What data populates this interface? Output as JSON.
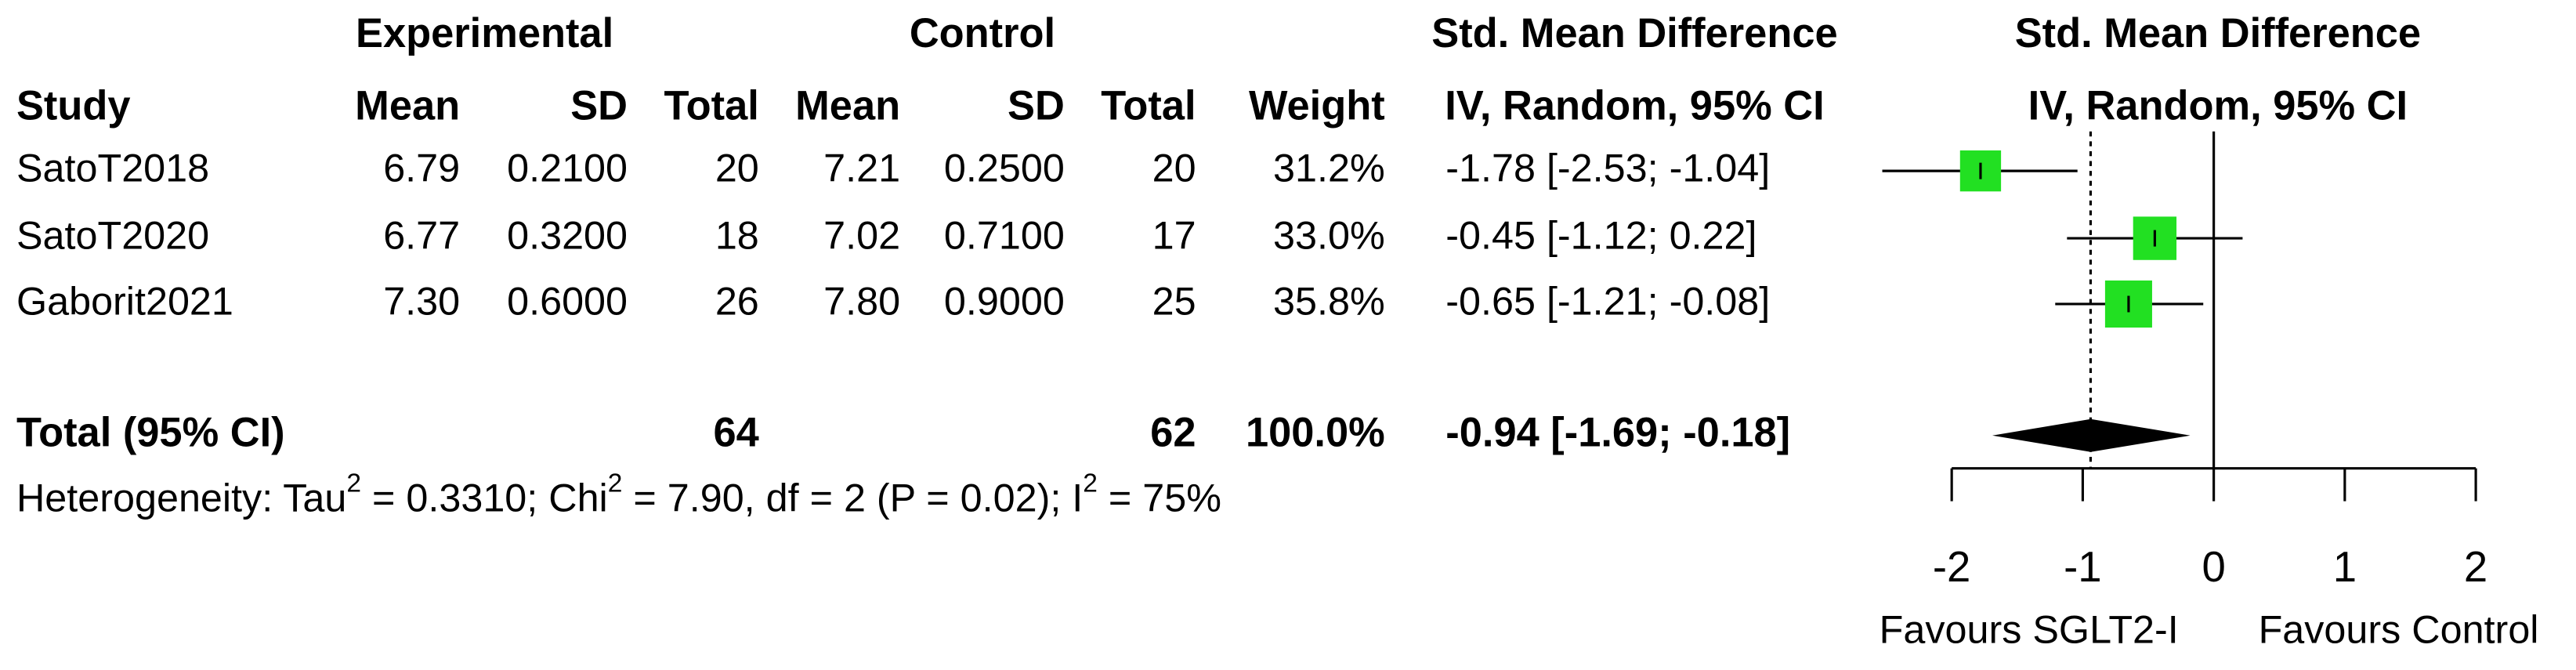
{
  "chart_data": {
    "type": "forest",
    "headers": {
      "experimental": "Experimental",
      "control": "Control",
      "smd": "Std. Mean Difference",
      "smd_method": "IV, Random, 95% CI",
      "plot_title": "Std. Mean Difference",
      "plot_method": "IV, Random, 95% CI"
    },
    "columns": [
      "Study",
      "Mean",
      "SD",
      "Total",
      "Mean",
      "SD",
      "Total",
      "Weight"
    ],
    "studies": [
      {
        "name": "SatoT2018",
        "exp_mean": "6.79",
        "exp_sd": "0.2100",
        "exp_total": "20",
        "ctrl_mean": "7.21",
        "ctrl_sd": "0.2500",
        "ctrl_total": "20",
        "weight": 31.2,
        "weight_label": "31.2%",
        "smd": -1.78,
        "ci_low": -2.53,
        "ci_high": -1.04,
        "ci_label": "-1.78 [-2.53; -1.04]"
      },
      {
        "name": "SatoT2020",
        "exp_mean": "6.77",
        "exp_sd": "0.3200",
        "exp_total": "18",
        "ctrl_mean": "7.02",
        "ctrl_sd": "0.7100",
        "ctrl_total": "17",
        "weight": 33.0,
        "weight_label": "33.0%",
        "smd": -0.45,
        "ci_low": -1.12,
        "ci_high": 0.22,
        "ci_label": "-0.45 [-1.12;  0.22]"
      },
      {
        "name": "Gaborit2021",
        "exp_mean": "7.30",
        "exp_sd": "0.6000",
        "exp_total": "26",
        "ctrl_mean": "7.80",
        "ctrl_sd": "0.9000",
        "ctrl_total": "25",
        "weight": 35.8,
        "weight_label": "35.8%",
        "smd": -0.65,
        "ci_low": -1.21,
        "ci_high": -0.08,
        "ci_label": "-0.65 [-1.21; -0.08]"
      }
    ],
    "total": {
      "name": "Total (95% CI)",
      "exp_total": "64",
      "ctrl_total": "62",
      "weight_label": "100.0%",
      "smd": -0.94,
      "ci_low": -1.69,
      "ci_high": -0.18,
      "ci_label": "-0.94 [-1.69; -0.18]"
    },
    "heterogeneity": [
      {
        "text": "Heterogeneity: Tau"
      },
      {
        "sup": "2"
      },
      {
        "text": " = 0.3310; Chi"
      },
      {
        "sup": "2"
      },
      {
        "text": " = 7.90, df = 2 (P = 0.02); I"
      },
      {
        "sup": "2"
      },
      {
        "text": " = 75%"
      }
    ],
    "xlim": [
      -2,
      2
    ],
    "xticks": [
      -2,
      -1,
      0,
      1,
      2
    ],
    "favours_left": "Favours SGLT2-I",
    "favours_right": "Favours Control",
    "box_color": "#22e022",
    "diamond_color": "#000000"
  }
}
